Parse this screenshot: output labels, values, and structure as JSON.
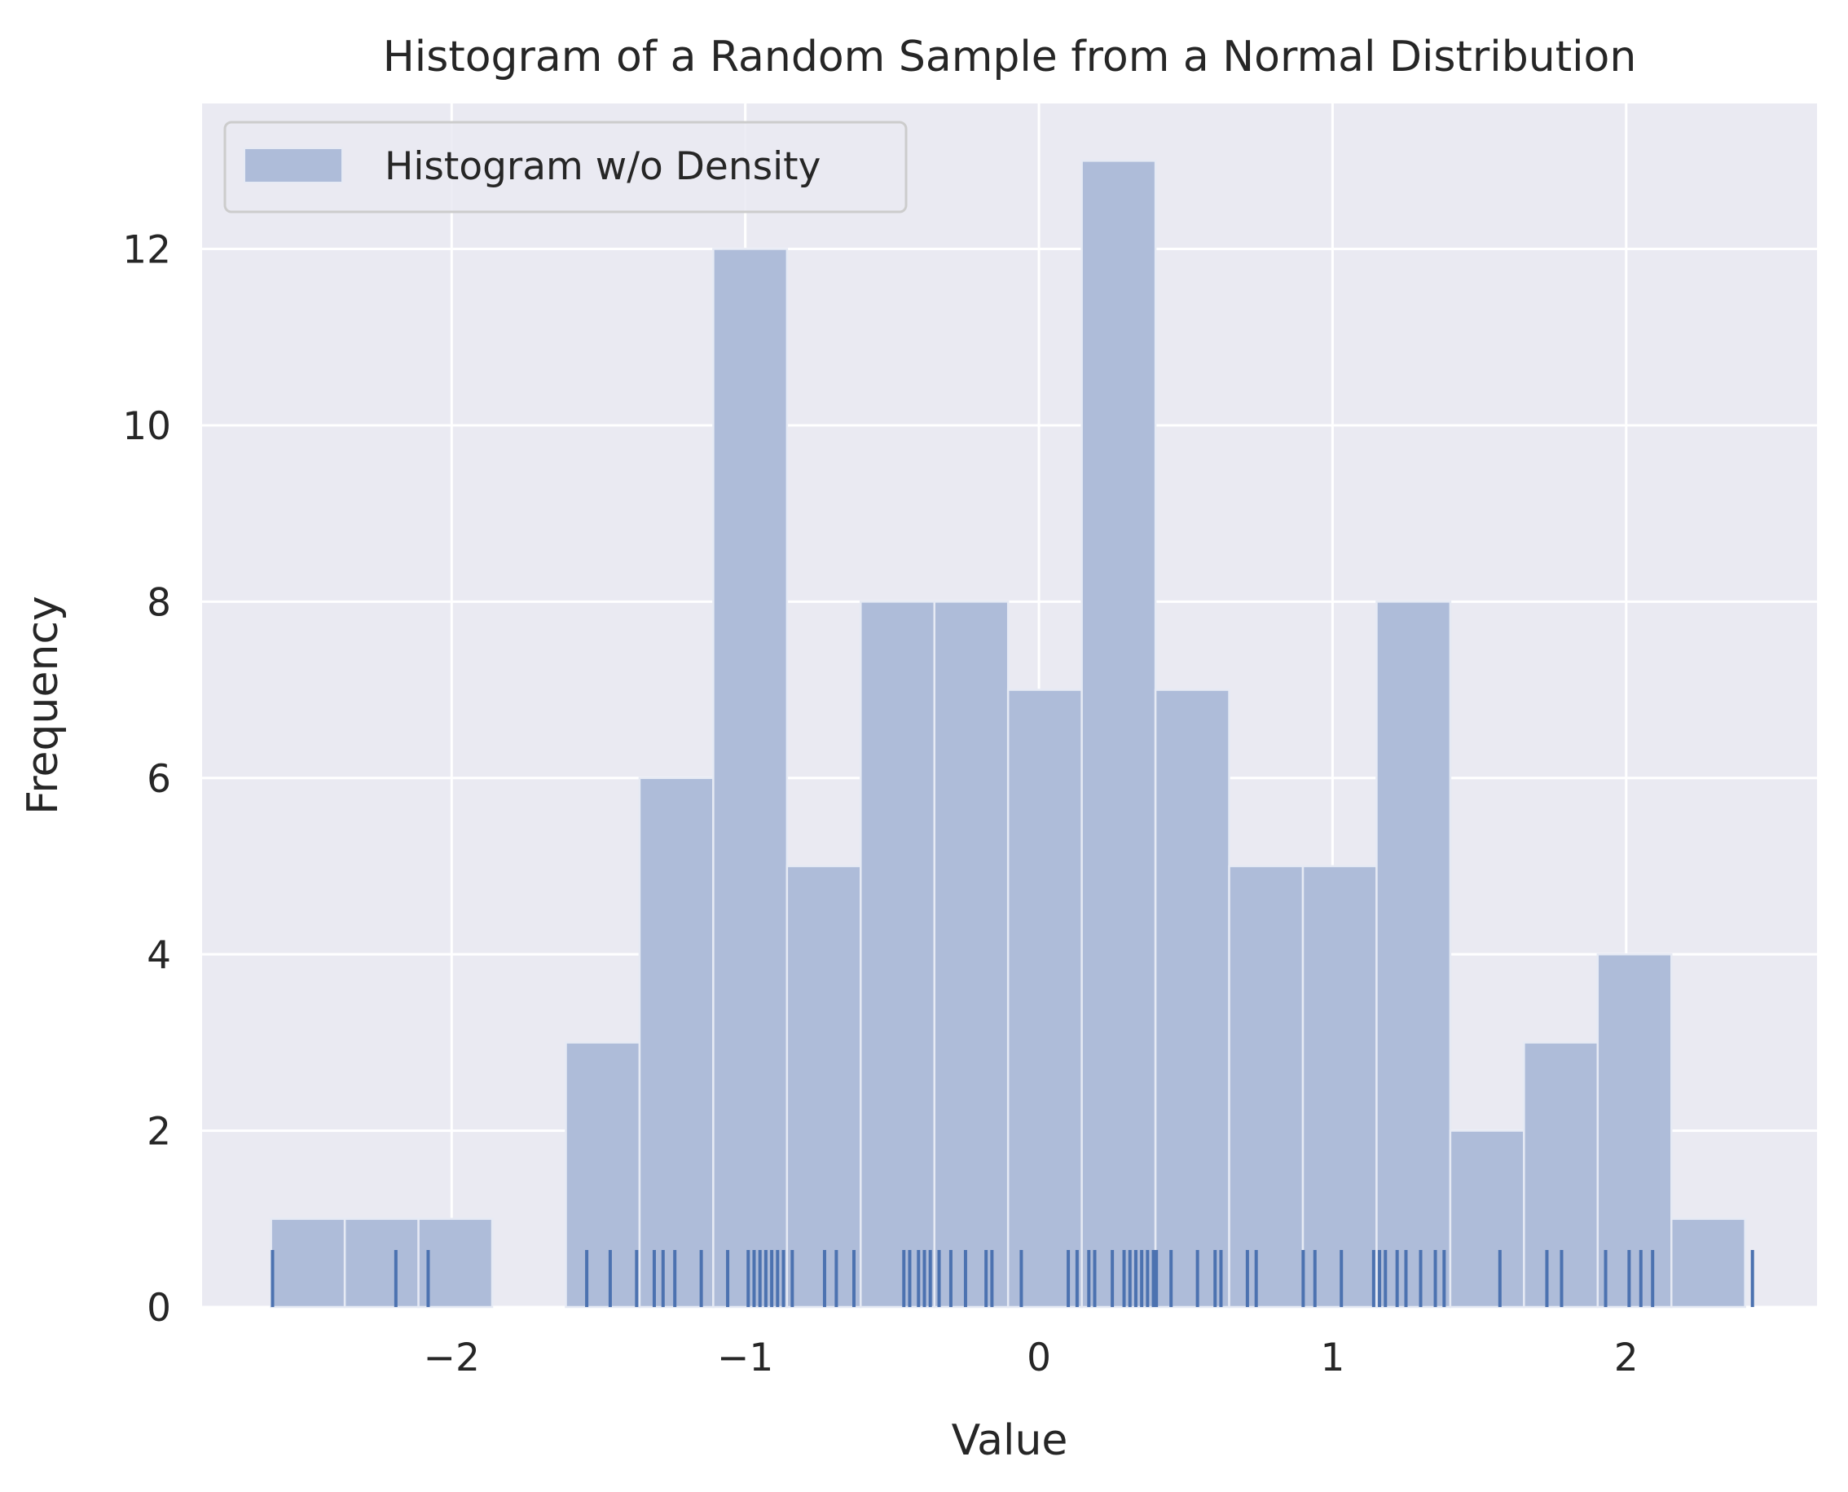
{
  "chart_data": {
    "type": "bar",
    "title": "Histogram of a Random Sample from a Normal Distribution",
    "xlabel": "Value",
    "ylabel": "Frequency",
    "xlim": [
      -2.85,
      2.65
    ],
    "ylim": [
      0,
      13.65
    ],
    "x_ticks": [
      -2,
      -1,
      0,
      1,
      2
    ],
    "x_tick_labels": [
      "−2",
      "−1",
      "0",
      "1",
      "2"
    ],
    "y_ticks": [
      0,
      2,
      4,
      6,
      8,
      10,
      12
    ],
    "y_tick_labels": [
      "0",
      "2",
      "4",
      "6",
      "8",
      "10",
      "12"
    ],
    "grid": true,
    "legend": {
      "position": "upper-left",
      "entries": [
        "Histogram w/o Density"
      ]
    },
    "series": [
      {
        "name": "Histogram w/o Density",
        "bin_edges": [
          -2.615,
          -2.364,
          -2.113,
          -1.862,
          -1.611,
          -1.36,
          -1.109,
          -0.858,
          -0.607,
          -0.356,
          -0.105,
          0.146,
          0.397,
          0.648,
          0.899,
          1.15,
          1.401,
          1.652,
          1.903,
          2.154,
          2.405
        ],
        "counts": [
          1,
          1,
          1,
          0,
          3,
          6,
          12,
          5,
          8,
          8,
          7,
          13,
          7,
          5,
          5,
          8,
          2,
          3,
          4,
          1
        ]
      }
    ],
    "rug": {
      "values": [
        -2.61,
        -2.19,
        -2.08,
        -1.54,
        -1.46,
        -1.37,
        -1.31,
        -1.28,
        -1.24,
        -1.15,
        -1.06,
        -0.99,
        -0.97,
        -0.95,
        -0.93,
        -0.91,
        -0.89,
        -0.87,
        -0.84,
        -0.73,
        -0.69,
        -0.63,
        -0.46,
        -0.44,
        -0.41,
        -0.39,
        -0.37,
        -0.34,
        -0.3,
        -0.25,
        -0.18,
        -0.16,
        -0.06,
        0.1,
        0.13,
        0.17,
        0.19,
        0.25,
        0.29,
        0.31,
        0.33,
        0.35,
        0.37,
        0.39,
        0.4,
        0.45,
        0.54,
        0.6,
        0.62,
        0.71,
        0.74,
        0.9,
        0.94,
        1.03,
        1.14,
        1.16,
        1.18,
        1.22,
        1.25,
        1.3,
        1.35,
        1.38,
        1.57,
        1.73,
        1.78,
        1.93,
        2.01,
        2.05,
        2.09,
        2.43
      ]
    },
    "colors": {
      "bar_fill": "#aebcd9",
      "bar_edge": "#e6eaf4",
      "rug": "#4c72b0",
      "axes_bg": "#eaeaf2",
      "grid": "#ffffff",
      "text": "#262626"
    }
  }
}
